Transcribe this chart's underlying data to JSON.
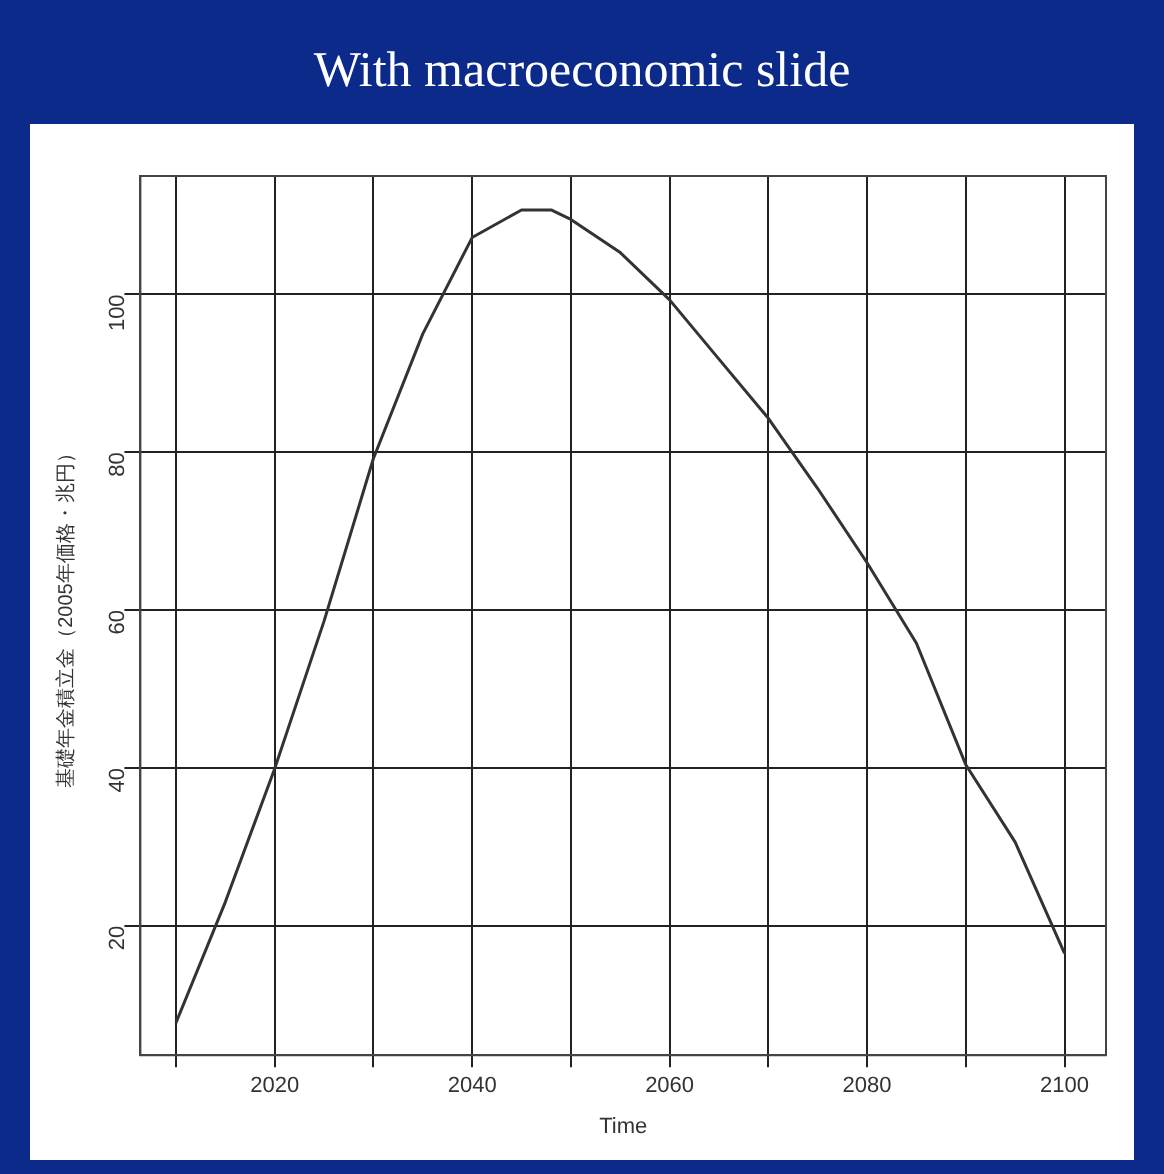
{
  "chart_data": {
    "type": "line",
    "title": "With macroeconomic slide",
    "xlabel": "Time",
    "ylabel": "基礎年金積立金（2005年価格・兆円）",
    "x": [
      2010,
      2015,
      2020,
      2025,
      2030,
      2035,
      2040,
      2045,
      2048,
      2050,
      2055,
      2060,
      2065,
      2070,
      2075,
      2080,
      2085,
      2090,
      2095,
      2100
    ],
    "series": [
      {
        "color": "#333333",
        "values": [
          7.7,
          23,
          39.9,
          58.6,
          79.2,
          95,
          107.2,
          110.7,
          110.7,
          109.5,
          105.3,
          99.3,
          91.8,
          84.3,
          75.4,
          66,
          55.8,
          40.4,
          30.6,
          16.5
        ]
      }
    ],
    "xlim": [
      2006.4,
      2104.2
    ],
    "xticks": [
      {
        "value": 2010,
        "label": null
      },
      2020,
      {
        "value": 2030,
        "label": null
      },
      2040,
      {
        "value": 2050,
        "label": null
      },
      2060,
      {
        "value": 2070,
        "label": null
      },
      2080,
      {
        "value": 2090,
        "label": null
      },
      2100
    ],
    "ylim": [
      3.6,
      115
    ],
    "yticks": [
      20,
      40,
      60,
      80,
      100
    ],
    "grid": true,
    "legend": false,
    "marker": "none",
    "line_style": "solid"
  }
}
